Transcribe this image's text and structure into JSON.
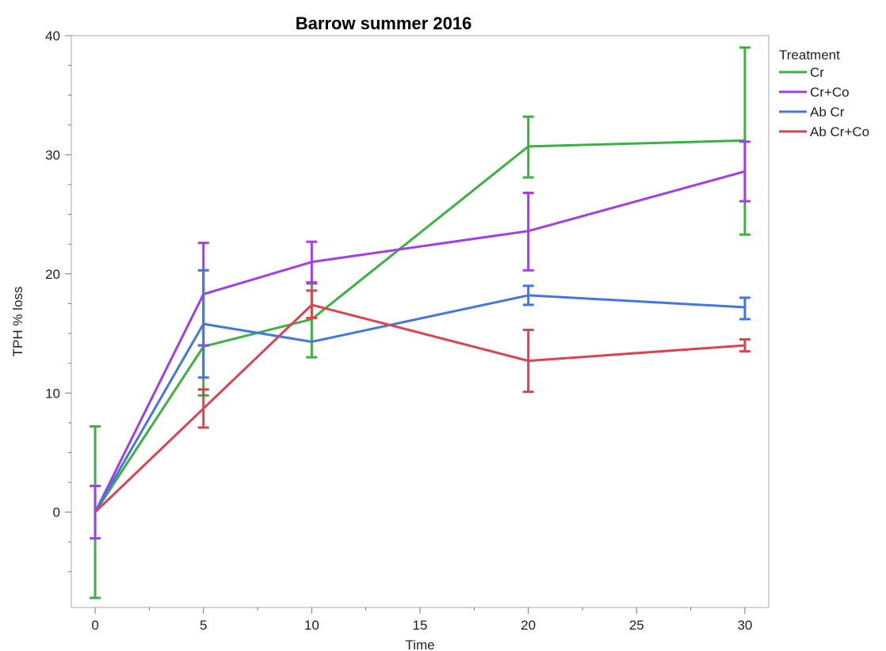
{
  "chart_data": {
    "type": "line",
    "title": "Barrow summer 2016",
    "xlabel": "Time",
    "ylabel": "TPH % loss",
    "x": [
      0,
      5,
      10,
      20,
      30
    ],
    "xticks": [
      0,
      5,
      10,
      15,
      20,
      25,
      30
    ],
    "yticks": [
      0,
      10,
      20,
      30,
      40
    ],
    "xlim": [
      -1.1,
      31.1
    ],
    "ylim": [
      -8,
      40
    ],
    "grid": false,
    "legend": {
      "title": "Treatment",
      "position": "top-right outside"
    },
    "series": [
      {
        "name": "Cr",
        "color": "#3cb043",
        "values": [
          0,
          13.9,
          16.2,
          30.7,
          31.2
        ],
        "err_low": [
          -7.2,
          9.8,
          13,
          28.1,
          23.3
        ],
        "err_high": [
          7.2,
          14,
          19.3,
          33.2,
          39
        ]
      },
      {
        "name": "Cr+Co",
        "color": "#a23ee6",
        "values": [
          0,
          18.3,
          21,
          23.6,
          28.6
        ],
        "err_low": [
          -2.2,
          14,
          19.2,
          20.3,
          26.1
        ],
        "err_high": [
          2.2,
          22.6,
          22.7,
          26.8,
          31.1
        ]
      },
      {
        "name": "Ab Cr",
        "color": "#4477dd",
        "values": [
          0,
          15.8,
          14.3,
          18.2,
          17.2
        ],
        "err_low": [
          0,
          11.3,
          15.5,
          17.4,
          16.2
        ],
        "err_high": [
          0,
          20.3,
          15.5,
          19,
          18
        ]
      },
      {
        "name": "Ab Cr+Co",
        "color": "#d94452",
        "values": [
          0,
          8.7,
          17.4,
          12.7,
          14
        ],
        "err_low": [
          0,
          7.1,
          16.3,
          10.1,
          13.5
        ],
        "err_high": [
          0,
          10.3,
          18.6,
          15.3,
          14.5
        ]
      }
    ]
  }
}
